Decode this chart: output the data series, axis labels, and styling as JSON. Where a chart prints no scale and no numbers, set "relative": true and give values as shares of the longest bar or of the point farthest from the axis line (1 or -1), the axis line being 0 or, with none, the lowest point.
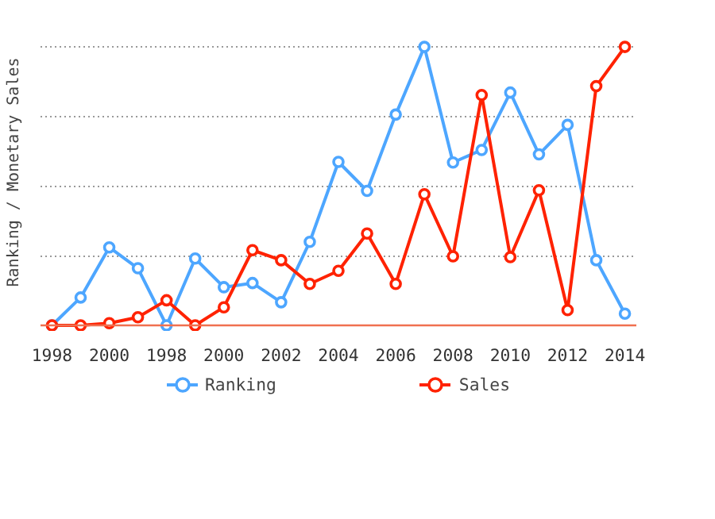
{
  "chart_data": {
    "type": "line",
    "relative": true,
    "ylabel": "Ranking / Monetary Sales",
    "categories": [
      "1998",
      null,
      "2000",
      null,
      "1998",
      null,
      "2000",
      null,
      "2002",
      null,
      "2004",
      null,
      "2006",
      null,
      "2008",
      null,
      "2010",
      null,
      "2012",
      null,
      "2014"
    ],
    "series": [
      {
        "name": "Ranking",
        "color": "#4da6ff",
        "values": [
          0,
          0.1,
          0.28,
          0.205,
          0,
          0.24,
          0.137,
          0.152,
          0.083,
          0.3,
          0.587,
          0.483,
          0.757,
          1.0,
          0.585,
          0.63,
          0.836,
          0.614,
          0.72,
          0.234,
          0.042
        ]
      },
      {
        "name": "Sales",
        "color": "#ff2200",
        "values": [
          0,
          0,
          0.008,
          0.029,
          0.09,
          0,
          0.065,
          0.27,
          0.234,
          0.149,
          0.196,
          0.33,
          0.149,
          0.471,
          0.248,
          0.827,
          0.245,
          0.485,
          0.055,
          0.859,
          1.0
        ]
      }
    ],
    "grid": "y",
    "legend": "bottom",
    "marker": "circle",
    "line_style": "solid"
  }
}
